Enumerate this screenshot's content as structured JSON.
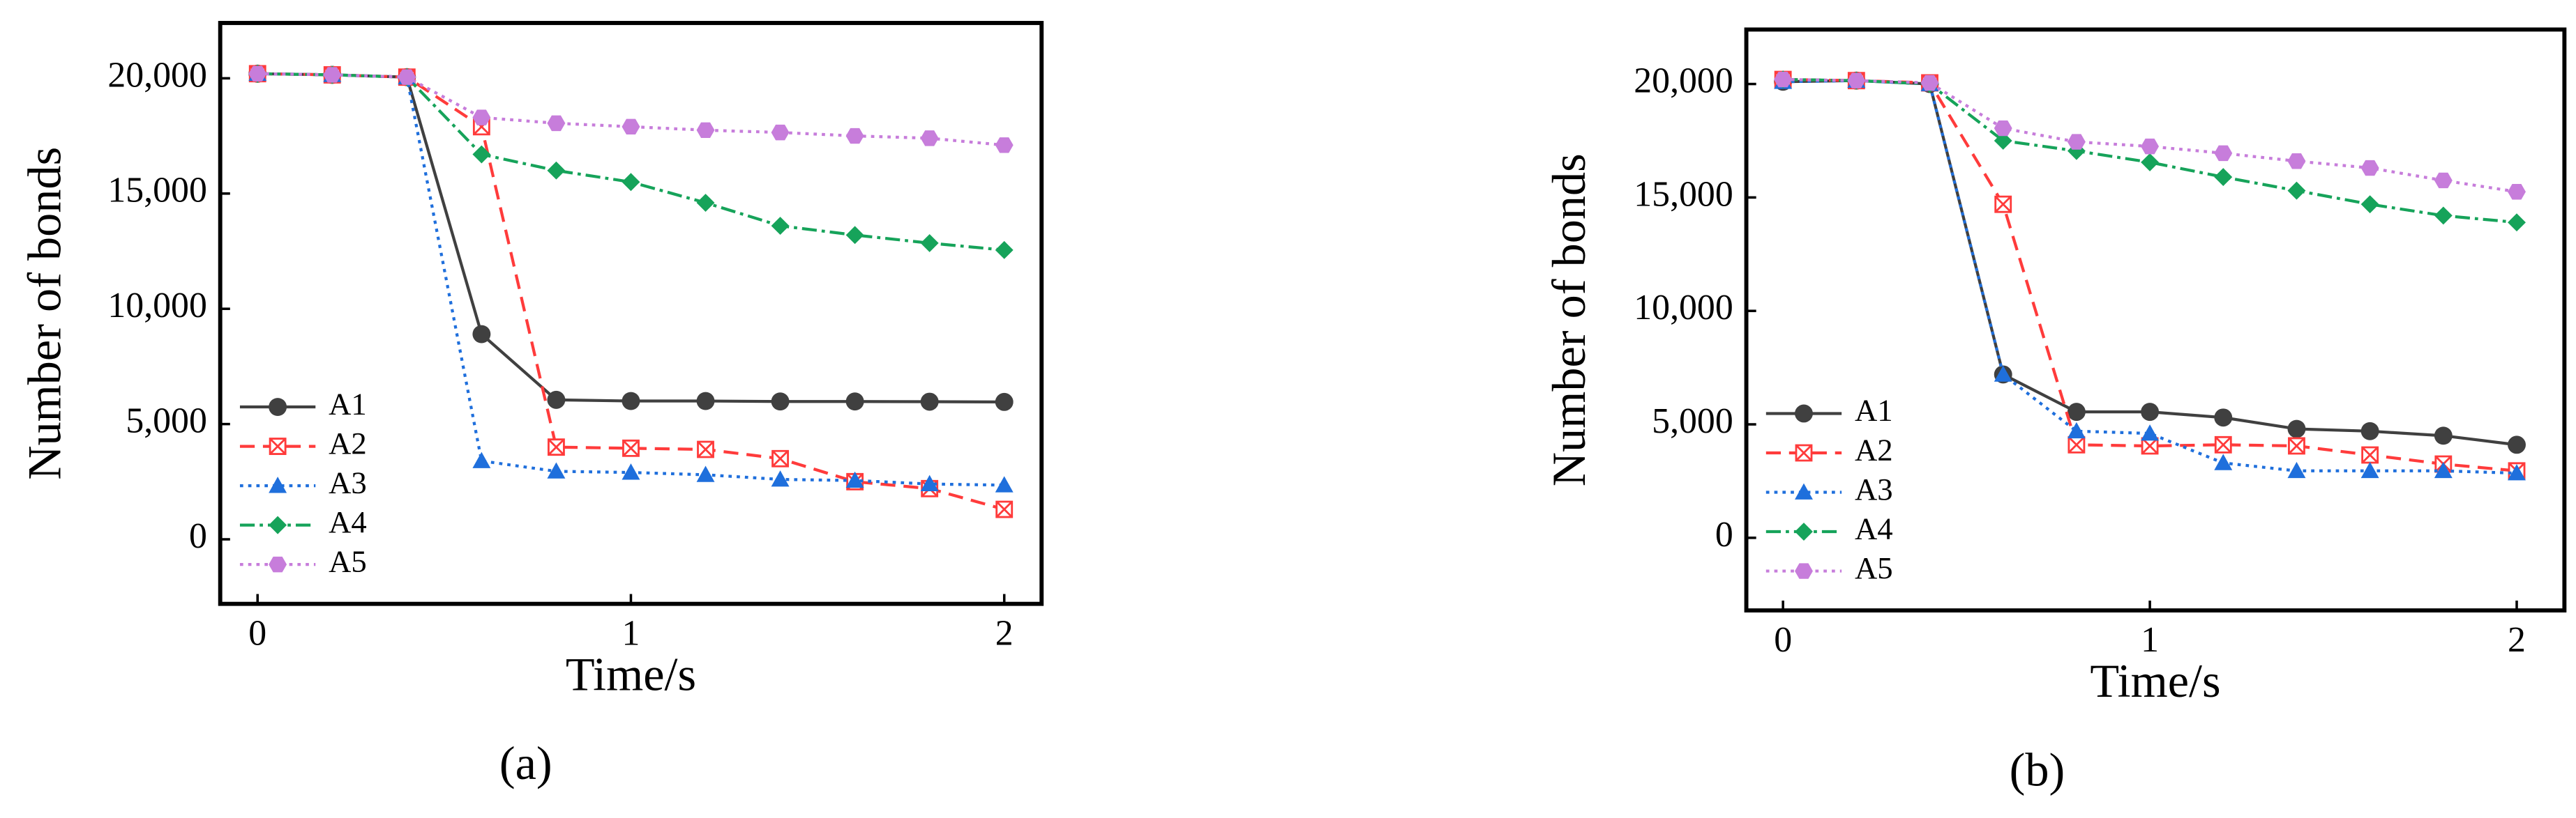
{
  "chart_data": [
    {
      "type": "line",
      "caption": "(a)",
      "x_label": "Time/s",
      "y_label": "Number of bonds",
      "x": [
        0,
        0.2,
        0.4,
        0.6,
        0.8,
        1,
        1.2,
        1.4,
        1.6,
        1.8,
        2
      ],
      "xlim": [
        -0.1,
        2.1
      ],
      "xticks": [
        0,
        1,
        2
      ],
      "ylim": [
        -2800,
        22400
      ],
      "yticks": [
        0,
        {
          "value": 5000,
          "label": "5,000"
        },
        {
          "value": 10000,
          "label": "10,000"
        },
        {
          "value": 15000,
          "label": "15,000"
        },
        {
          "value": 20000,
          "label": "20,000"
        }
      ],
      "legend": "lower left",
      "series": [
        {
          "name": "A1",
          "color": "#404040",
          "marker": "circle",
          "line_style": "solid",
          "values": [
            20200,
            20150,
            20050,
            8900,
            6050,
            6000,
            6000,
            5980,
            5980,
            5970,
            5960
          ]
        },
        {
          "name": "A2",
          "color": "#ff3b3b",
          "marker": "xsquare",
          "line_style": "dashed",
          "values": [
            20200,
            20150,
            20050,
            17900,
            4000,
            3950,
            3900,
            3500,
            2500,
            2200,
            1300
          ]
        },
        {
          "name": "A3",
          "color": "#1f6fdc",
          "marker": "triangle",
          "line_style": "dotted",
          "values": [
            20200,
            20150,
            20050,
            3400,
            2950,
            2900,
            2800,
            2600,
            2550,
            2400,
            2350
          ]
        },
        {
          "name": "A4",
          "color": "#16a35a",
          "marker": "diamond",
          "line_style": "dashdot",
          "values": [
            20200,
            20150,
            20050,
            16700,
            16000,
            15500,
            14600,
            13600,
            13200,
            12850,
            12550
          ]
        },
        {
          "name": "A5",
          "color": "#c77ddb",
          "marker": "hexagon",
          "line_style": "dotted",
          "values": [
            20200,
            20150,
            20050,
            18300,
            18050,
            17900,
            17750,
            17650,
            17500,
            17400,
            17100
          ]
        }
      ]
    },
    {
      "type": "line",
      "caption": "(b)",
      "x_label": "Time/s",
      "y_label": "Number of bonds",
      "x": [
        0,
        0.2,
        0.4,
        0.6,
        0.8,
        1,
        1.2,
        1.4,
        1.6,
        1.8,
        2
      ],
      "xlim": [
        -0.1,
        2.13
      ],
      "xticks": [
        0,
        1,
        2
      ],
      "ylim": [
        -3200,
        22400
      ],
      "yticks": [
        0,
        {
          "value": 5000,
          "label": "5,000"
        },
        {
          "value": 10000,
          "label": "10,000"
        },
        {
          "value": 15000,
          "label": "15,000"
        },
        {
          "value": 20000,
          "label": "20,000"
        }
      ],
      "legend": "lower left",
      "series": [
        {
          "name": "A1",
          "color": "#404040",
          "marker": "circle",
          "line_style": "solid",
          "values": [
            20100,
            20150,
            20000,
            7200,
            5550,
            5550,
            5300,
            4800,
            4700,
            4500,
            4100
          ]
        },
        {
          "name": "A2",
          "color": "#ff3b3b",
          "marker": "xsquare",
          "line_style": "dashed",
          "values": [
            20200,
            20150,
            20050,
            14700,
            4100,
            4050,
            4100,
            4050,
            3650,
            3250,
            2950
          ]
        },
        {
          "name": "A3",
          "color": "#1f6fdc",
          "marker": "triangle",
          "line_style": "dotted",
          "values": [
            20100,
            20150,
            20000,
            7200,
            4700,
            4600,
            3300,
            2950,
            2950,
            2950,
            2850
          ]
        },
        {
          "name": "A4",
          "color": "#16a35a",
          "marker": "diamond",
          "line_style": "dashdot",
          "values": [
            20200,
            20150,
            20000,
            17500,
            17050,
            16550,
            15900,
            15300,
            14700,
            14200,
            13900
          ]
        },
        {
          "name": "A5",
          "color": "#c77ddb",
          "marker": "hexagon",
          "line_style": "dotted",
          "values": [
            20200,
            20150,
            20050,
            18050,
            17450,
            17250,
            16950,
            16600,
            16300,
            15750,
            15250
          ]
        }
      ]
    }
  ]
}
